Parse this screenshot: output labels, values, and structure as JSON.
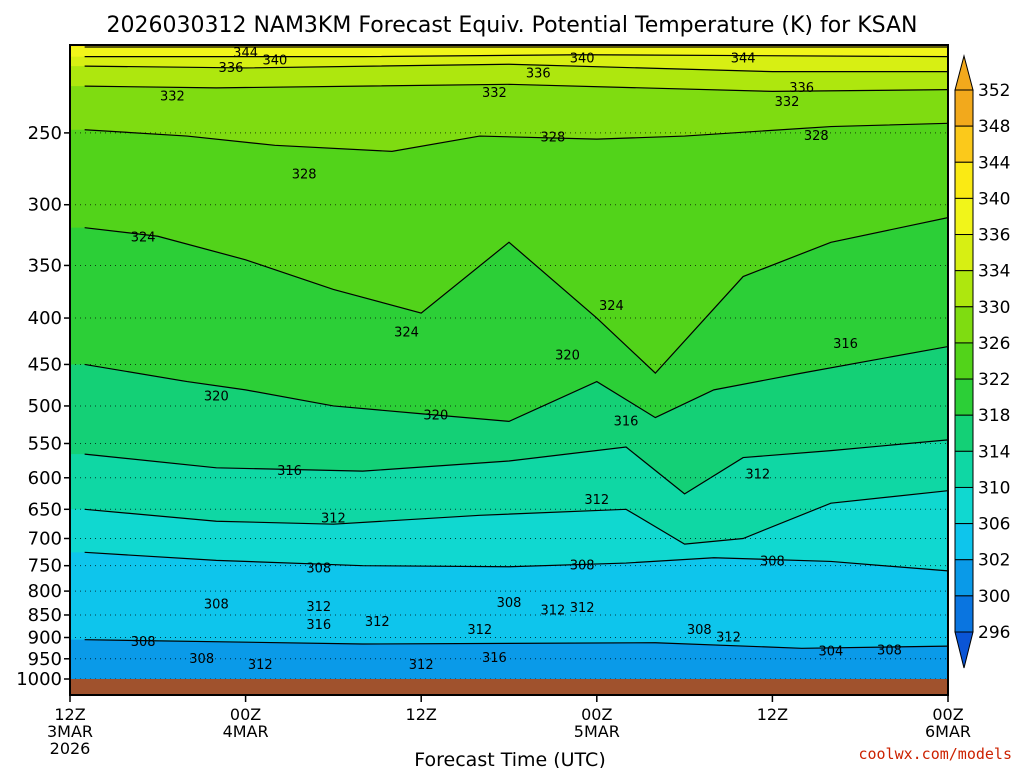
{
  "chart_data": {
    "type": "contour",
    "title": "2026030312 NAM3KM Forecast Equiv. Potential Temperature (K) for KSAN",
    "xlabel": "Forecast Time (UTC)",
    "ylabel": "",
    "credit": "coolwx.com/models",
    "x_ticks": [
      {
        "lines": [
          "12Z",
          "3MAR",
          "2026"
        ],
        "hour": 0
      },
      {
        "lines": [
          "00Z",
          "4MAR"
        ],
        "hour": 12
      },
      {
        "lines": [
          "12Z"
        ],
        "hour": 24
      },
      {
        "lines": [
          "00Z",
          "5MAR"
        ],
        "hour": 36
      },
      {
        "lines": [
          "12Z"
        ],
        "hour": 48
      },
      {
        "lines": [
          "00Z",
          "6MAR"
        ],
        "hour": 60
      }
    ],
    "xlim": [
      0,
      60
    ],
    "y_ticks": [
      250,
      300,
      350,
      400,
      450,
      500,
      550,
      600,
      650,
      700,
      750,
      800,
      850,
      900,
      950,
      1000
    ],
    "ylim_hpa": [
      200,
      1000
    ],
    "y_scale": "log-pressure",
    "grid": "dotted-horizontal",
    "colorbar": {
      "labels": [
        352,
        348,
        344,
        340,
        336,
        334,
        330,
        326,
        322,
        318,
        314,
        310,
        306,
        302,
        300,
        296
      ],
      "colors": [
        "#f2a91c",
        "#fbc91b",
        "#faea14",
        "#f1f51a",
        "#d7ef13",
        "#aee70e",
        "#7fdc11",
        "#52d31a",
        "#2ccf37",
        "#14d076",
        "#0fd7a4",
        "#10d8d0",
        "#0ec5ec",
        "#0a9ae8",
        "#0a75e0",
        "#0a55d6"
      ],
      "extend": "both"
    },
    "isotherms": [
      {
        "value": 344,
        "points": [
          [
            1,
            201
          ],
          [
            20,
            201
          ],
          [
            40,
            201
          ],
          [
            60,
            201
          ]
        ]
      },
      {
        "value": 340,
        "points": [
          [
            1,
            206
          ],
          [
            20,
            206
          ],
          [
            35,
            205
          ],
          [
            60,
            206
          ]
        ]
      },
      {
        "value": 336,
        "points": [
          [
            1,
            211
          ],
          [
            12,
            212
          ],
          [
            30,
            210
          ],
          [
            48,
            214
          ],
          [
            60,
            214
          ]
        ]
      },
      {
        "value": 332,
        "points": [
          [
            1,
            222
          ],
          [
            10,
            223
          ],
          [
            30,
            221
          ],
          [
            48,
            225
          ],
          [
            60,
            224
          ]
        ]
      },
      {
        "value": 328,
        "points": [
          [
            1,
            248
          ],
          [
            8,
            252
          ],
          [
            14,
            258
          ],
          [
            22,
            262
          ],
          [
            28,
            252
          ],
          [
            36,
            254
          ],
          [
            42,
            252
          ],
          [
            52,
            246
          ],
          [
            60,
            244
          ]
        ]
      },
      {
        "value": 324,
        "points": [
          [
            1,
            318
          ],
          [
            6,
            325
          ],
          [
            12,
            345
          ],
          [
            18,
            372
          ],
          [
            24,
            395
          ],
          [
            30,
            330
          ],
          [
            36,
            400
          ],
          [
            40,
            460
          ],
          [
            46,
            360
          ],
          [
            52,
            330
          ],
          [
            60,
            310
          ]
        ]
      },
      {
        "value": 320,
        "points": [
          [
            1,
            450
          ],
          [
            8,
            470
          ],
          [
            12,
            480
          ],
          [
            18,
            500
          ],
          [
            24,
            510
          ],
          [
            30,
            520
          ],
          [
            36,
            470
          ],
          [
            40,
            515
          ],
          [
            44,
            480
          ],
          [
            50,
            460
          ],
          [
            60,
            430
          ]
        ]
      },
      {
        "value": 316,
        "points": [
          [
            1,
            565
          ],
          [
            10,
            585
          ],
          [
            20,
            590
          ],
          [
            30,
            575
          ],
          [
            38,
            555
          ],
          [
            42,
            625
          ],
          [
            46,
            570
          ],
          [
            52,
            560
          ],
          [
            60,
            545
          ]
        ]
      },
      {
        "value": 312,
        "points": [
          [
            1,
            650
          ],
          [
            10,
            670
          ],
          [
            18,
            675
          ],
          [
            28,
            660
          ],
          [
            38,
            650
          ],
          [
            42,
            710
          ],
          [
            46,
            700
          ],
          [
            52,
            640
          ],
          [
            60,
            620
          ]
        ]
      },
      {
        "value": 308,
        "points": [
          [
            1,
            725
          ],
          [
            10,
            740
          ],
          [
            20,
            750
          ],
          [
            30,
            752
          ],
          [
            38,
            745
          ],
          [
            44,
            735
          ],
          [
            52,
            742
          ],
          [
            60,
            760
          ]
        ]
      },
      {
        "value": 304,
        "points": [
          [
            1,
            905
          ],
          [
            20,
            915
          ],
          [
            40,
            912
          ],
          [
            50,
            925
          ],
          [
            60,
            920
          ]
        ]
      }
    ],
    "contour_labels": [
      {
        "value": 344,
        "hour": 12,
        "hpa": 204
      },
      {
        "value": 340,
        "hour": 14,
        "hpa": 208
      },
      {
        "value": 336,
        "hour": 11,
        "hpa": 212
      },
      {
        "value": 332,
        "hour": 7,
        "hpa": 228
      },
      {
        "value": 340,
        "hour": 35,
        "hpa": 207
      },
      {
        "value": 344,
        "hour": 46,
        "hpa": 207
      },
      {
        "value": 336,
        "hour": 32,
        "hpa": 215
      },
      {
        "value": 332,
        "hour": 29,
        "hpa": 226
      },
      {
        "value": 336,
        "hour": 50,
        "hpa": 223
      },
      {
        "value": 332,
        "hour": 49,
        "hpa": 231
      },
      {
        "value": 328,
        "hour": 33,
        "hpa": 253
      },
      {
        "value": 328,
        "hour": 51,
        "hpa": 252
      },
      {
        "value": 328,
        "hour": 16,
        "hpa": 278
      },
      {
        "value": 324,
        "hour": 5,
        "hpa": 326
      },
      {
        "value": 324,
        "hour": 23,
        "hpa": 415
      },
      {
        "value": 324,
        "hour": 37,
        "hpa": 388
      },
      {
        "value": 320,
        "hour": 10,
        "hpa": 488
      },
      {
        "value": 320,
        "hour": 25,
        "hpa": 512
      },
      {
        "value": 320,
        "hour": 34,
        "hpa": 440
      },
      {
        "value": 316,
        "hour": 53,
        "hpa": 427
      },
      {
        "value": 316,
        "hour": 38,
        "hpa": 520
      },
      {
        "value": 316,
        "hour": 15,
        "hpa": 590
      },
      {
        "value": 312,
        "hour": 18,
        "hpa": 665
      },
      {
        "value": 312,
        "hour": 36,
        "hpa": 635
      },
      {
        "value": 312,
        "hour": 47,
        "hpa": 595
      },
      {
        "value": 308,
        "hour": 17,
        "hpa": 755
      },
      {
        "value": 308,
        "hour": 35,
        "hpa": 750
      },
      {
        "value": 308,
        "hour": 48,
        "hpa": 742
      },
      {
        "value": 308,
        "hour": 10,
        "hpa": 828
      },
      {
        "value": 312,
        "hour": 17,
        "hpa": 833
      },
      {
        "value": 308,
        "hour": 30,
        "hpa": 825
      },
      {
        "value": 312,
        "hour": 33,
        "hpa": 840
      },
      {
        "value": 312,
        "hour": 35,
        "hpa": 835
      },
      {
        "value": 316,
        "hour": 17,
        "hpa": 872
      },
      {
        "value": 312,
        "hour": 21,
        "hpa": 865
      },
      {
        "value": 312,
        "hour": 28,
        "hpa": 883
      },
      {
        "value": 308,
        "hour": 43,
        "hpa": 883
      },
      {
        "value": 312,
        "hour": 45,
        "hpa": 900
      },
      {
        "value": 308,
        "hour": 5,
        "hpa": 910
      },
      {
        "value": 308,
        "hour": 9,
        "hpa": 950
      },
      {
        "value": 312,
        "hour": 13,
        "hpa": 965
      },
      {
        "value": 312,
        "hour": 24,
        "hpa": 965
      },
      {
        "value": 316,
        "hour": 29,
        "hpa": 948
      },
      {
        "value": 304,
        "hour": 52,
        "hpa": 932
      },
      {
        "value": 308,
        "hour": 56,
        "hpa": 930
      }
    ]
  }
}
